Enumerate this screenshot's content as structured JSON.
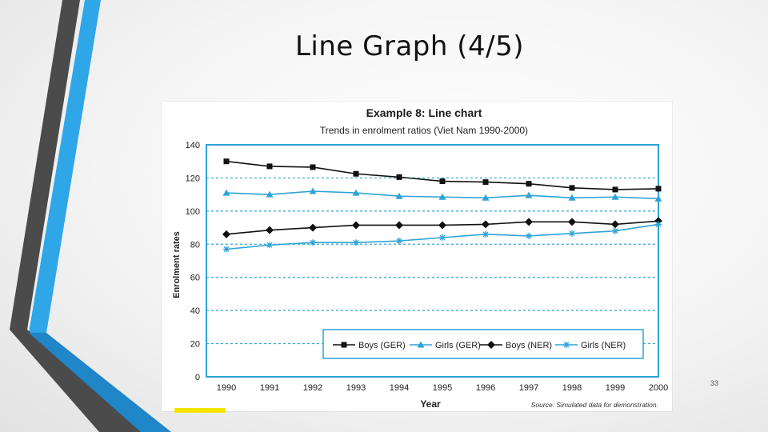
{
  "slide": {
    "title": "Line Graph (4/5)",
    "page_number": "33",
    "accent_colors": {
      "dark": "#4b4b4b",
      "blue": "#28a4e6",
      "yellow": "#f5e400"
    }
  },
  "chart_data": {
    "type": "line",
    "title": "Example 8: Line chart",
    "subtitle": "Trends in enrolment ratios (Viet Nam 1990-2000)",
    "xlabel": "Year",
    "ylabel": "Enrolment rates",
    "source": "Source: Simulated data for demonstration.",
    "x": [
      "1990",
      "1991",
      "1992",
      "1993",
      "1994",
      "1995",
      "1996",
      "1997",
      "1998",
      "1999",
      "2000"
    ],
    "yticks": [
      "0",
      "20",
      "40",
      "60",
      "80",
      "100",
      "120",
      "140"
    ],
    "ylim": [
      0,
      140
    ],
    "grid": "horizontal dashed",
    "legend_position": "bottom",
    "series": [
      {
        "name": "Boys (GER)",
        "marker": "square",
        "color": "#111111",
        "values": [
          130,
          127,
          126.5,
          122.5,
          120.5,
          118,
          117.5,
          116.5,
          114,
          113,
          113.5
        ]
      },
      {
        "name": "Girls (GER)",
        "marker": "triangle",
        "color": "#2ea3d6",
        "values": [
          111,
          110,
          112,
          111,
          109,
          108.5,
          108,
          109.5,
          108,
          108.5,
          107.5
        ]
      },
      {
        "name": "Boys (NER)",
        "marker": "diamond",
        "color": "#111111",
        "values": [
          86,
          88.5,
          90,
          91.5,
          91.5,
          91.5,
          92,
          93.5,
          93.5,
          92,
          94
        ]
      },
      {
        "name": "Girls (NER)",
        "marker": "star",
        "color": "#2ea3d6",
        "values": [
          77,
          79.5,
          81,
          81,
          82,
          84,
          86,
          85,
          86.5,
          88,
          92
        ]
      }
    ]
  }
}
